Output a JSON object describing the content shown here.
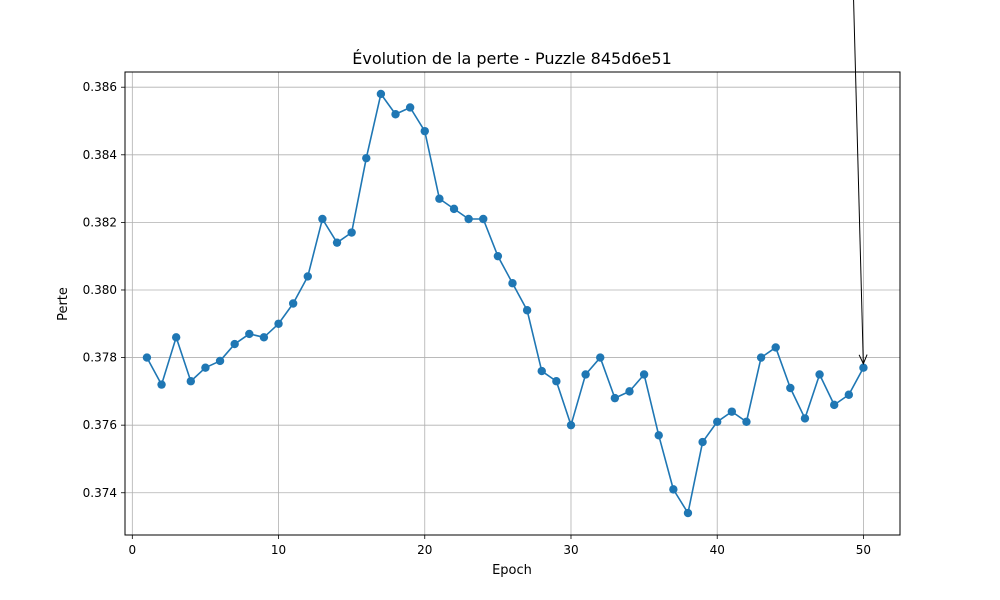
{
  "chart_data": {
    "type": "line",
    "title": "Évolution de la perte - Puzzle 845d6e51",
    "xlabel": "Epoch",
    "ylabel": "Perte",
    "xlim": [
      -0.5,
      52.5
    ],
    "ylim": [
      0.37275,
      0.38645
    ],
    "xticks": [
      0,
      10,
      20,
      30,
      40,
      50
    ],
    "yticks": [
      0.374,
      0.376,
      0.378,
      0.38,
      0.382,
      0.384,
      0.386
    ],
    "grid": true,
    "color": "#1f77b4",
    "annotation_color": "#000000",
    "series": [
      {
        "x": [
          1,
          2,
          3,
          4,
          5,
          6,
          7,
          8,
          9,
          10,
          11,
          12,
          13,
          14,
          15,
          16,
          17,
          18,
          19,
          20,
          21,
          22,
          23,
          24,
          25,
          26,
          27,
          28,
          29,
          30,
          31,
          32,
          33,
          34,
          35,
          36,
          37,
          38,
          39,
          40,
          41,
          42,
          43,
          44,
          45,
          46,
          47,
          48,
          49,
          50
        ],
        "y": [
          0.378,
          0.3772,
          0.3786,
          0.3773,
          0.3777,
          0.3779,
          0.3784,
          0.3787,
          0.3786,
          0.379,
          0.3796,
          0.3804,
          0.3821,
          0.3814,
          0.3817,
          0.3839,
          0.3858,
          0.3852,
          0.3854,
          0.3847,
          0.3827,
          0.3824,
          0.3821,
          0.3821,
          0.381,
          0.3802,
          0.3794,
          0.3776,
          0.3773,
          0.376,
          0.3775,
          0.378,
          0.3768,
          0.377,
          0.3775,
          0.3757,
          0.3741,
          0.3734,
          0.3755,
          0.3761,
          0.3764,
          0.3761,
          0.378,
          0.3783,
          0.3771,
          0.3762,
          0.3775,
          0.3766,
          0.3769,
          0.3777
        ]
      }
    ],
    "annotation": {
      "x": 50,
      "y": 0.3777
    }
  }
}
